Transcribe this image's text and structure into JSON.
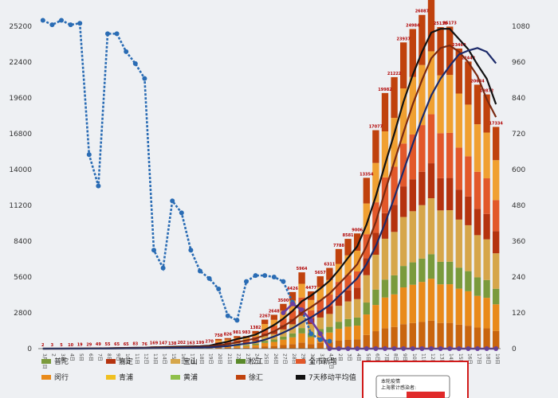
{
  "chart_data": {
    "type": "bar",
    "title": "",
    "xlabel": "",
    "ylabel": "",
    "y_left": {
      "range": [
        0,
        25200
      ],
      "ticks": [
        "0",
        "2800",
        "5600",
        "8400",
        "11200",
        "14000",
        "16800",
        "19600",
        "22400",
        "25200"
      ]
    },
    "y_right": {
      "range": [
        0,
        1080
      ],
      "ticks": [
        "0",
        "120",
        "240",
        "360",
        "480",
        "600",
        "720",
        "840",
        "960",
        "1080"
      ]
    },
    "grid": false,
    "legend_placement": "bottom",
    "categories": [
      "3月1日",
      "2",
      "3日",
      "4日",
      "5日",
      "6日",
      "7日",
      "8日",
      "9日",
      "10日",
      "11日",
      "12日",
      "13日",
      "14日",
      "15日",
      "16日",
      "17日",
      "18日",
      "19日",
      "20日",
      "21日",
      "22日",
      "23日",
      "24日",
      "25日",
      "26日",
      "27日",
      "28日",
      "29日",
      "30日",
      "31日",
      "4月1日",
      "2日",
      "3日",
      "4日",
      "5日",
      "6日",
      "7日",
      "8日",
      "9日",
      "10日",
      "11日",
      "12日",
      "13日",
      "14日",
      "15日",
      "16日",
      "17日",
      "18日",
      "19日"
    ],
    "totals": [
      2,
      3,
      5,
      10,
      19,
      29,
      49,
      55,
      65,
      65,
      83,
      76,
      169,
      147,
      138,
      202,
      163,
      199,
      270,
      758,
      826,
      981,
      983,
      1382,
      2267,
      2648,
      3500,
      4426,
      5964,
      4477,
      5657,
      6311,
      7788,
      8581,
      9006,
      13354,
      17077,
      19982,
      21222,
      23937,
      24984,
      26087,
      27345,
      25136,
      25173,
      23460,
      22442,
      20634,
      19872,
      17334
    ],
    "bar_labels": [
      "2",
      "3",
      "5",
      "10",
      "19",
      "29",
      "49",
      "55",
      "65",
      "65",
      "83",
      "76",
      "169",
      "147",
      "138",
      "202",
      "163",
      "199",
      "270",
      "758",
      "826",
      "981",
      "983",
      "1382",
      "2267",
      "2648",
      "3500",
      "4426",
      "5964",
      "4477",
      "5657",
      "6311",
      "7788",
      "8581",
      "9006",
      "13354",
      "17077",
      "19982",
      "21222",
      "23937",
      "24984",
      "26087",
      "27345",
      "25136",
      "25173",
      "23460",
      "22442",
      "20634",
      "19872",
      "17334"
    ],
    "stack_colors": [
      "#c9650e",
      "#e98a1a",
      "#7a9a3c",
      "#d6a64a",
      "#b5330f",
      "#e2582a",
      "#f0a031",
      "#c0420d"
    ],
    "series": [
      {
        "name": "",
        "axis": "right",
        "color": "#2a6cb4",
        "style": "dashed-markers",
        "values": [
          1100,
          1085,
          1100,
          1085,
          1090,
          650,
          545,
          1055,
          1055,
          995,
          955,
          905,
          330,
          270,
          495,
          455,
          330,
          260,
          235,
          200,
          110,
          95,
          225,
          245,
          245,
          240,
          225,
          155,
          130,
          50,
          30,
          25,
          null,
          null,
          null,
          null,
          null,
          null,
          null,
          null,
          null,
          null,
          null,
          null,
          null,
          null,
          null,
          null,
          null,
          null
        ]
      },
      {
        "name": "",
        "axis": "right",
        "color": "#6a3ea0",
        "style": "solid-markers",
        "values": [
          null,
          null,
          null,
          null,
          null,
          null,
          null,
          null,
          null,
          null,
          null,
          null,
          null,
          null,
          null,
          null,
          null,
          null,
          null,
          null,
          null,
          null,
          null,
          null,
          null,
          null,
          120,
          150,
          130,
          95,
          50,
          0,
          0,
          0,
          0,
          0,
          0,
          0,
          0,
          0,
          0,
          0,
          0,
          0,
          0,
          0,
          0,
          0,
          0,
          0
        ]
      },
      {
        "name": "",
        "axis": "left",
        "color": "#111111",
        "style": "solid",
        "values": [
          2,
          3,
          4,
          6,
          9,
          15,
          25,
          35,
          50,
          60,
          70,
          75,
          100,
          120,
          140,
          160,
          170,
          190,
          230,
          400,
          550,
          750,
          900,
          1100,
          1450,
          1850,
          2350,
          2950,
          3700,
          4150,
          4700,
          5300,
          6150,
          7100,
          8000,
          9700,
          11900,
          14400,
          16800,
          19300,
          21400,
          23200,
          24700,
          25000,
          25000,
          24200,
          23400,
          22200,
          21100,
          19100
        ]
      },
      {
        "name": "",
        "axis": "left",
        "color": "#7a2a12",
        "style": "solid",
        "values": [
          1,
          2,
          2,
          3,
          5,
          8,
          12,
          20,
          30,
          40,
          50,
          55,
          70,
          85,
          95,
          110,
          130,
          150,
          180,
          260,
          350,
          500,
          650,
          800,
          1050,
          1350,
          1750,
          2200,
          2800,
          3250,
          3750,
          4300,
          5050,
          5800,
          6600,
          8000,
          9900,
          12300,
          14600,
          16900,
          19100,
          21000,
          22700,
          23500,
          23700,
          23200,
          22400,
          21300,
          19500,
          18100
        ]
      },
      {
        "name": "",
        "axis": "left",
        "color": "#1c2a6a",
        "style": "solid",
        "values": [
          0,
          0,
          1,
          1,
          2,
          3,
          5,
          8,
          12,
          18,
          25,
          30,
          40,
          50,
          60,
          70,
          80,
          95,
          110,
          150,
          200,
          300,
          400,
          500,
          700,
          950,
          1250,
          1600,
          2050,
          2450,
          2900,
          3400,
          4100,
          4800,
          5500,
          6600,
          8000,
          9800,
          11800,
          13900,
          16000,
          18000,
          19800,
          21100,
          22100,
          23000,
          23300,
          23500,
          23200,
          22300
        ]
      }
    ],
    "legend": [
      {
        "label": "普陀",
        "color": "#7a9a3c"
      },
      {
        "label": "嘉定",
        "color": "#b5330f"
      },
      {
        "label": "宝山",
        "color": "#d6a64a"
      },
      {
        "label": "松江",
        "color": "#5a8a2a"
      },
      {
        "label": "全市新增",
        "color": "#e2582a"
      },
      {
        "label": "闵行",
        "color": "#e98a1a"
      },
      {
        "label": "青浦",
        "color": "#f0c020"
      },
      {
        "label": "黄浦",
        "color": "#8fbf4a"
      },
      {
        "label": "徐汇",
        "color": "#c0420d"
      },
      {
        "label": "7天移动平均值",
        "color": "#111111"
      }
    ],
    "note": {
      "lines": [
        "本轮疫情",
        "上海累计感染者:"
      ]
    }
  }
}
